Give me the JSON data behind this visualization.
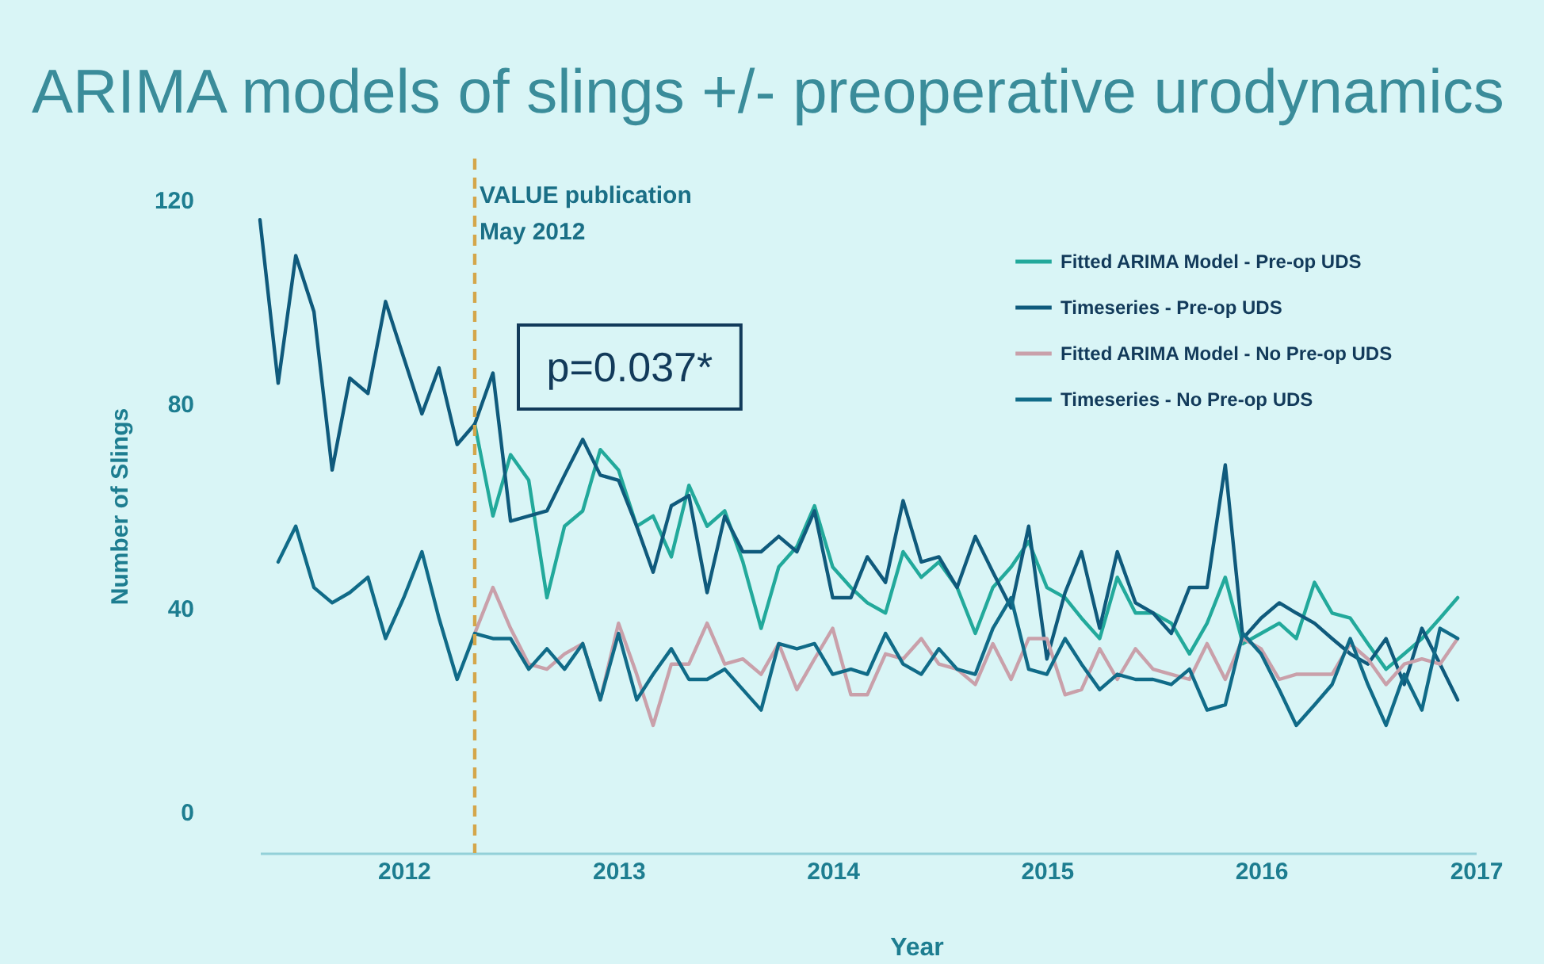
{
  "chart_data": {
    "type": "line",
    "title": "ARIMA models of slings +/- preoperative urodynamics",
    "xlabel": "Year",
    "ylabel": "Number of Slings",
    "x": [
      "2011-05",
      "2011-06",
      "2011-07",
      "2011-08",
      "2011-09",
      "2011-10",
      "2011-11",
      "2011-12",
      "2012-01",
      "2012-02",
      "2012-03",
      "2012-04",
      "2012-05",
      "2012-06",
      "2012-07",
      "2012-08",
      "2012-09",
      "2012-10",
      "2012-11",
      "2012-12",
      "2013-01",
      "2013-02",
      "2013-03",
      "2013-04",
      "2013-05",
      "2013-06",
      "2013-07",
      "2013-08",
      "2013-09",
      "2013-10",
      "2013-11",
      "2013-12",
      "2014-01",
      "2014-02",
      "2014-03",
      "2014-04",
      "2014-05",
      "2014-06",
      "2014-07",
      "2014-08",
      "2014-09",
      "2014-10",
      "2014-11",
      "2014-12",
      "2015-01",
      "2015-02",
      "2015-03",
      "2015-04",
      "2015-05",
      "2015-06",
      "2015-07",
      "2015-08",
      "2015-09",
      "2015-10",
      "2015-11",
      "2015-12",
      "2016-01",
      "2016-02",
      "2016-03",
      "2016-04",
      "2016-05",
      "2016-06",
      "2016-07",
      "2016-08",
      "2016-09",
      "2016-10",
      "2016-11",
      "2016-12"
    ],
    "series": [
      {
        "name": "Fitted ARIMA Model - Pre-op UDS",
        "color": "#22a99b",
        "values": [
          null,
          null,
          null,
          null,
          null,
          null,
          null,
          null,
          null,
          null,
          null,
          null,
          76,
          58,
          70,
          65,
          42,
          56,
          59,
          71,
          67,
          56,
          58,
          50,
          64,
          56,
          59,
          49,
          36,
          48,
          52,
          60,
          48,
          44,
          41,
          39,
          51,
          46,
          49,
          44,
          35,
          44,
          48,
          53,
          44,
          42,
          38,
          34,
          46,
          39,
          39,
          37,
          31,
          37,
          46,
          33,
          35,
          37,
          34,
          45,
          39,
          38,
          33,
          28,
          31,
          34,
          38,
          42
        ]
      },
      {
        "name": "Timeseries - Pre-op UDS",
        "color": "#0f5a7c",
        "values": [
          116,
          84,
          109,
          98,
          67,
          85,
          82,
          100,
          89,
          78,
          87,
          72,
          76,
          86,
          57,
          58,
          59,
          66,
          73,
          66,
          65,
          56,
          47,
          60,
          62,
          43,
          58,
          51,
          51,
          54,
          51,
          59,
          42,
          42,
          50,
          45,
          61,
          49,
          50,
          44,
          54,
          47,
          40,
          56,
          30,
          43,
          51,
          36,
          51,
          41,
          39,
          35,
          44,
          44,
          68,
          34,
          38,
          41,
          39,
          37,
          34,
          31,
          29,
          34,
          25,
          36,
          29,
          22
        ]
      },
      {
        "name": "Fitted ARIMA Model - No Pre-op UDS",
        "color": "#c9a0aa",
        "values": [
          null,
          null,
          null,
          null,
          null,
          null,
          null,
          null,
          null,
          null,
          null,
          null,
          35,
          44,
          36,
          29,
          28,
          31,
          33,
          22,
          37,
          27,
          17,
          29,
          29,
          37,
          29,
          30,
          27,
          33,
          24,
          30,
          36,
          23,
          23,
          31,
          30,
          34,
          29,
          28,
          25,
          33,
          26,
          34,
          34,
          23,
          24,
          32,
          26,
          32,
          28,
          27,
          26,
          33,
          26,
          34,
          32,
          26,
          27,
          27,
          27,
          33,
          30,
          25,
          29,
          30,
          29,
          34
        ]
      },
      {
        "name": "Timeseries - No Pre-op UDS",
        "color": "#106b88",
        "values": [
          null,
          49,
          56,
          44,
          41,
          43,
          46,
          34,
          42,
          51,
          38,
          26,
          35,
          34,
          34,
          28,
          32,
          28,
          33,
          22,
          35,
          22,
          27,
          32,
          26,
          26,
          28,
          24,
          20,
          33,
          32,
          33,
          27,
          28,
          27,
          35,
          29,
          27,
          32,
          28,
          27,
          36,
          42,
          28,
          27,
          34,
          29,
          24,
          27,
          26,
          26,
          25,
          28,
          20,
          21,
          35,
          31,
          24,
          17,
          21,
          25,
          34,
          25,
          17,
          27,
          20,
          36,
          34
        ]
      }
    ],
    "xlim": [
      "2011-05",
      "2017"
    ],
    "xticks": [
      "2012",
      "2013",
      "2014",
      "2015",
      "2016",
      "2017"
    ],
    "ylim": [
      -8,
      128
    ],
    "yticks": [
      0,
      40,
      80,
      120
    ],
    "ref_lines": [
      {
        "axis": "x",
        "value": "2012-05",
        "label": "VALUE publication\nMay 2012",
        "color": "#d4a64a",
        "line_style": "dashed"
      }
    ],
    "annotations": [
      "p=0.037*"
    ],
    "legend": "top right"
  }
}
